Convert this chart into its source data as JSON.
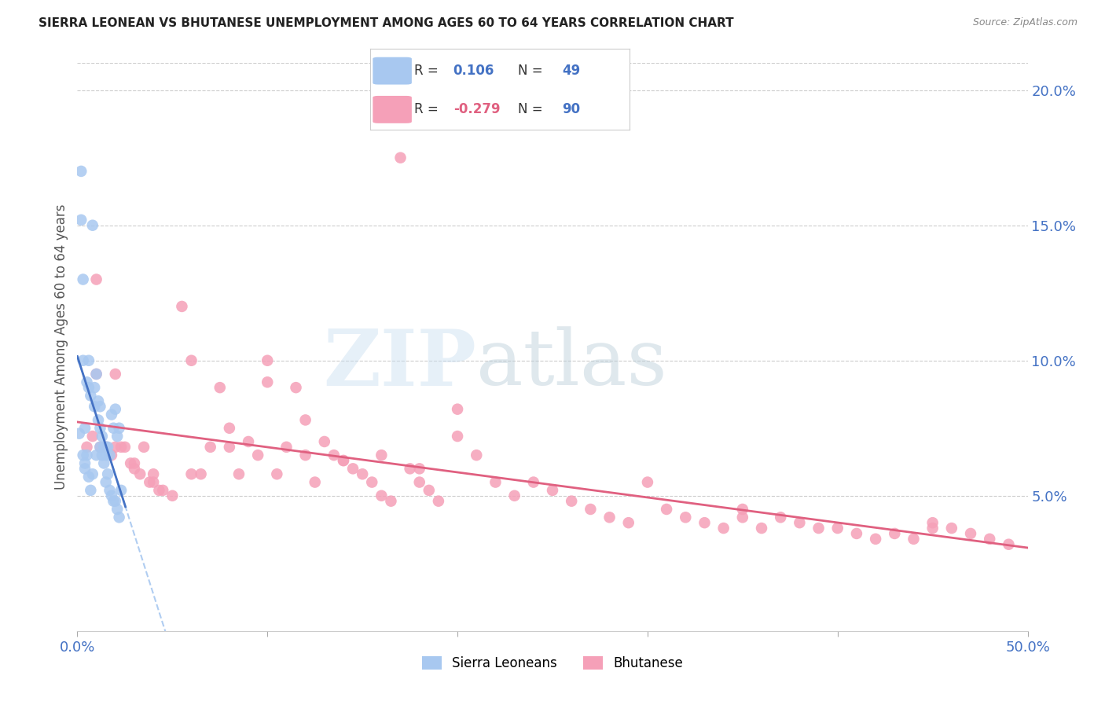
{
  "title": "SIERRA LEONEAN VS BHUTANESE UNEMPLOYMENT AMONG AGES 60 TO 64 YEARS CORRELATION CHART",
  "source": "Source: ZipAtlas.com",
  "ylabel": "Unemployment Among Ages 60 to 64 years",
  "xlim": [
    0,
    0.5
  ],
  "ylim": [
    0,
    0.21
  ],
  "yticks_right": [
    0.05,
    0.1,
    0.15,
    0.2
  ],
  "ytick_right_labels": [
    "5.0%",
    "10.0%",
    "15.0%",
    "20.0%"
  ],
  "sierra_color": "#a8c8f0",
  "bhutan_color": "#f5a0b8",
  "sierra_line_color": "#4472c4",
  "bhutan_line_color": "#e06080",
  "trend_dashed_color": "#a8c8f0",
  "background_color": "#ffffff",
  "sierra_R": "0.106",
  "sierra_N": "49",
  "bhutan_R": "-0.279",
  "bhutan_N": "90",
  "tick_color": "#4472c4",
  "label_color": "#555555",
  "grid_color": "#cccccc",
  "sierra_x": [
    0.001,
    0.002,
    0.002,
    0.003,
    0.003,
    0.004,
    0.004,
    0.005,
    0.005,
    0.006,
    0.006,
    0.007,
    0.007,
    0.008,
    0.008,
    0.009,
    0.009,
    0.01,
    0.01,
    0.011,
    0.011,
    0.012,
    0.012,
    0.013,
    0.013,
    0.014,
    0.014,
    0.015,
    0.015,
    0.016,
    0.016,
    0.017,
    0.017,
    0.018,
    0.018,
    0.019,
    0.019,
    0.02,
    0.02,
    0.021,
    0.021,
    0.022,
    0.022,
    0.023,
    0.003,
    0.006,
    0.012,
    0.015,
    0.004
  ],
  "sierra_y": [
    0.073,
    0.17,
    0.152,
    0.1,
    0.065,
    0.06,
    0.075,
    0.092,
    0.065,
    0.057,
    0.09,
    0.052,
    0.087,
    0.058,
    0.15,
    0.09,
    0.083,
    0.095,
    0.065,
    0.085,
    0.078,
    0.075,
    0.068,
    0.072,
    0.065,
    0.068,
    0.062,
    0.065,
    0.055,
    0.068,
    0.058,
    0.065,
    0.052,
    0.08,
    0.05,
    0.075,
    0.048,
    0.082,
    0.048,
    0.072,
    0.045,
    0.075,
    0.042,
    0.052,
    0.13,
    0.1,
    0.083,
    0.068,
    0.062
  ],
  "bhutan_x": [
    0.005,
    0.008,
    0.01,
    0.012,
    0.015,
    0.018,
    0.02,
    0.023,
    0.025,
    0.028,
    0.03,
    0.033,
    0.035,
    0.038,
    0.04,
    0.043,
    0.045,
    0.05,
    0.055,
    0.06,
    0.065,
    0.07,
    0.075,
    0.08,
    0.085,
    0.09,
    0.095,
    0.1,
    0.105,
    0.11,
    0.115,
    0.12,
    0.125,
    0.13,
    0.135,
    0.14,
    0.145,
    0.15,
    0.155,
    0.16,
    0.165,
    0.17,
    0.175,
    0.18,
    0.185,
    0.19,
    0.2,
    0.21,
    0.22,
    0.23,
    0.24,
    0.25,
    0.26,
    0.27,
    0.28,
    0.29,
    0.3,
    0.31,
    0.32,
    0.33,
    0.34,
    0.35,
    0.36,
    0.37,
    0.38,
    0.39,
    0.4,
    0.41,
    0.42,
    0.43,
    0.44,
    0.45,
    0.46,
    0.47,
    0.48,
    0.49,
    0.01,
    0.02,
    0.03,
    0.04,
    0.06,
    0.08,
    0.1,
    0.12,
    0.14,
    0.16,
    0.18,
    0.2,
    0.35,
    0.45
  ],
  "bhutan_y": [
    0.068,
    0.072,
    0.13,
    0.068,
    0.068,
    0.065,
    0.095,
    0.068,
    0.068,
    0.062,
    0.06,
    0.058,
    0.068,
    0.055,
    0.055,
    0.052,
    0.052,
    0.05,
    0.12,
    0.1,
    0.058,
    0.068,
    0.09,
    0.075,
    0.058,
    0.07,
    0.065,
    0.1,
    0.058,
    0.068,
    0.09,
    0.065,
    0.055,
    0.07,
    0.065,
    0.063,
    0.06,
    0.058,
    0.055,
    0.05,
    0.048,
    0.175,
    0.06,
    0.055,
    0.052,
    0.048,
    0.082,
    0.065,
    0.055,
    0.05,
    0.055,
    0.052,
    0.048,
    0.045,
    0.042,
    0.04,
    0.055,
    0.045,
    0.042,
    0.04,
    0.038,
    0.042,
    0.038,
    0.042,
    0.04,
    0.038,
    0.038,
    0.036,
    0.034,
    0.036,
    0.034,
    0.04,
    0.038,
    0.036,
    0.034,
    0.032,
    0.095,
    0.068,
    0.062,
    0.058,
    0.058,
    0.068,
    0.092,
    0.078,
    0.063,
    0.065,
    0.06,
    0.072,
    0.045,
    0.038
  ]
}
